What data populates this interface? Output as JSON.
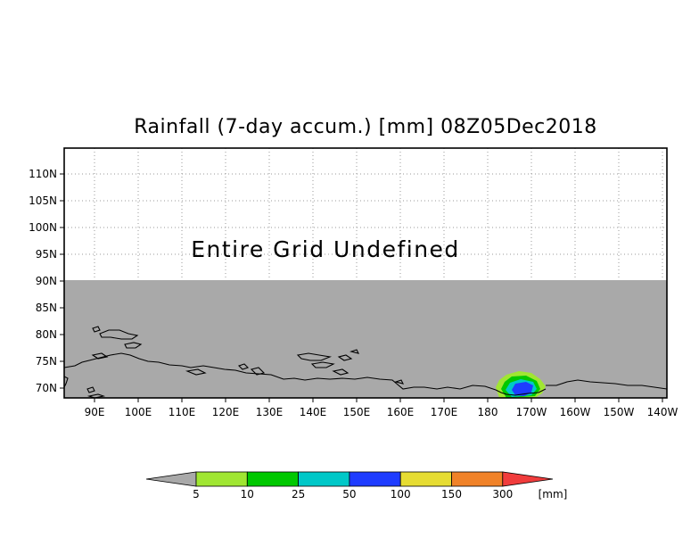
{
  "title": "Rainfall (7-day accum.) [mm] 08Z05Dec2018",
  "notice": "Entire Grid Undefined",
  "map": {
    "lat_ticks": [
      "110N",
      "105N",
      "100N",
      "95N",
      "90N",
      "85N",
      "80N",
      "75N",
      "70N"
    ],
    "lon_ticks": [
      "90E",
      "100E",
      "110E",
      "120E",
      "130E",
      "140E",
      "150E",
      "160E",
      "170E",
      "180",
      "170W",
      "160W",
      "150W",
      "140W"
    ],
    "undefined_fill": "#a9a9a9",
    "grid": "dotted",
    "coastline_color": "#000000"
  },
  "colorbar": {
    "unit": "[mm]",
    "under_color": "#a9a9a9",
    "over_color": "#f03c3c",
    "bins": [
      {
        "color": "#a0e632"
      },
      {
        "color": "#00c800"
      },
      {
        "color": "#00c8c8"
      },
      {
        "color": "#1e3cff"
      },
      {
        "color": "#e6dc32"
      },
      {
        "color": "#f08228"
      }
    ],
    "labels": [
      "5",
      "10",
      "25",
      "50",
      "100",
      "150",
      "300"
    ]
  }
}
